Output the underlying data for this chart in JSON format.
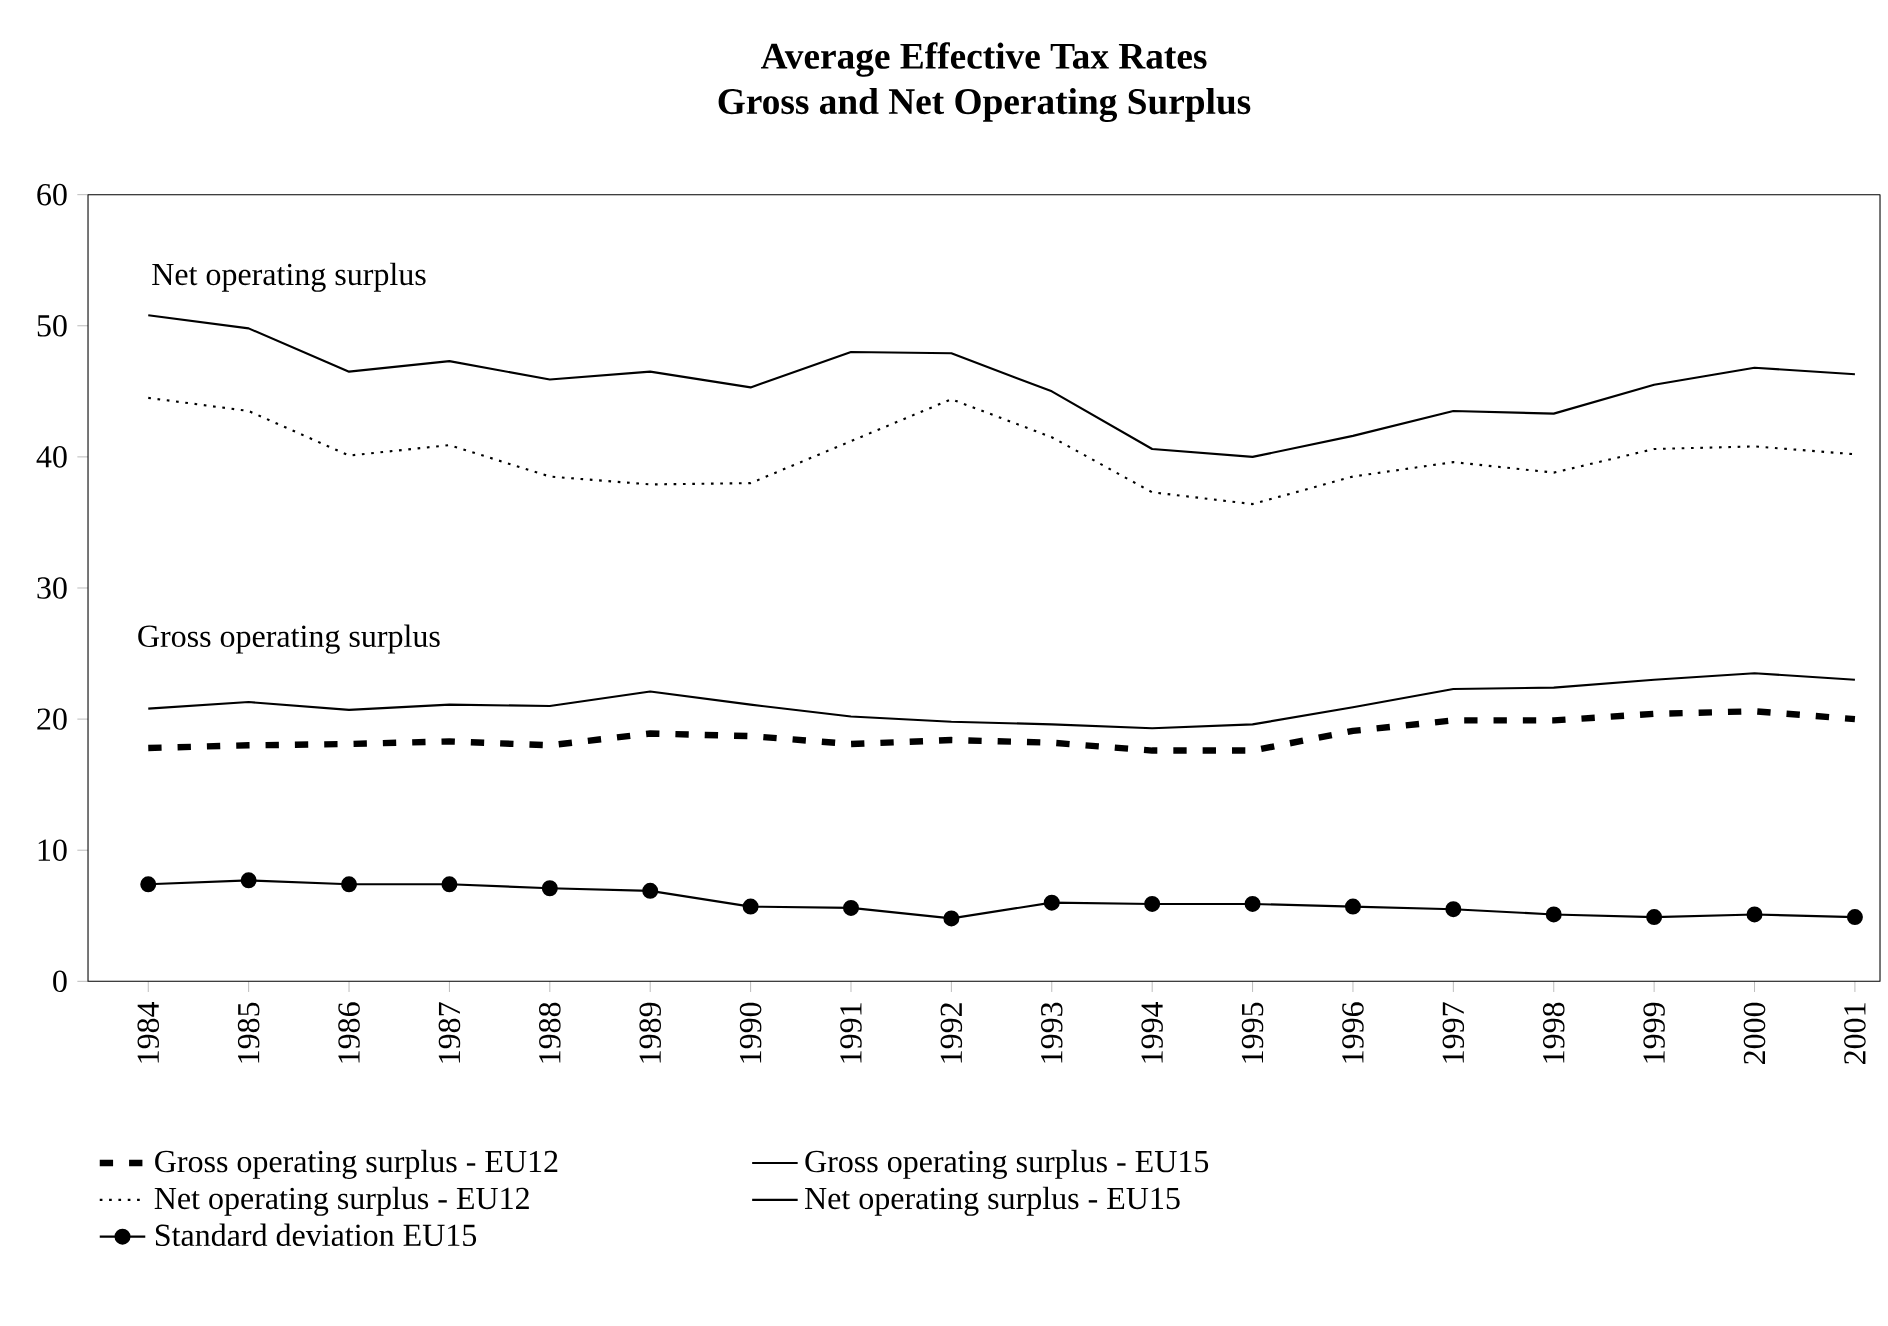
{
  "chart_data": {
    "type": "line",
    "title": "Average Effective Tax Rates",
    "subtitle": "Gross and Net Operating Surplus",
    "categories": [
      "1984",
      "1985",
      "1986",
      "1987",
      "1988",
      "1989",
      "1990",
      "1991",
      "1992",
      "1993",
      "1994",
      "1995",
      "1996",
      "1997",
      "1998",
      "1999",
      "2000",
      "2001"
    ],
    "series": [
      {
        "name": "Gross operating surplus - EU12",
        "color": "#000000",
        "line_style": "dashed",
        "values": [
          17.8,
          18.0,
          18.1,
          18.3,
          18.0,
          18.9,
          18.7,
          18.1,
          18.4,
          18.2,
          17.6,
          17.6,
          19.1,
          19.9,
          19.9,
          20.4,
          20.6,
          20.0
        ]
      },
      {
        "name": "Gross operating surplus - EU15",
        "color": "#000000",
        "line_style": "solid",
        "values": [
          20.8,
          21.3,
          20.7,
          21.1,
          21.0,
          22.1,
          21.1,
          20.2,
          19.8,
          19.6,
          19.3,
          19.6,
          20.9,
          22.3,
          22.4,
          23.0,
          23.5,
          23.0
        ]
      },
      {
        "name": "Net operating surplus - EU12",
        "color": "#000000",
        "line_style": "dotted",
        "values": [
          44.5,
          43.5,
          40.1,
          40.9,
          38.5,
          37.9,
          38.0,
          41.2,
          44.4,
          41.5,
          37.3,
          36.4,
          38.5,
          39.6,
          38.8,
          40.6,
          40.8,
          40.2
        ]
      },
      {
        "name": "Net operating surplus - EU15",
        "color": "#000000",
        "line_style": "solid",
        "values": [
          50.8,
          49.8,
          46.5,
          47.3,
          45.9,
          46.5,
          45.3,
          48.0,
          47.9,
          45.0,
          40.6,
          40.0,
          41.6,
          43.5,
          43.3,
          45.5,
          46.8,
          46.3
        ]
      },
      {
        "name": "Standard deviation EU15",
        "color": "#000000",
        "line_style": "solid",
        "marker": "circle",
        "values": [
          7.4,
          7.7,
          7.4,
          7.4,
          7.1,
          6.9,
          5.7,
          5.6,
          4.8,
          6.0,
          5.9,
          5.9,
          5.7,
          5.5,
          5.1,
          4.9,
          5.1,
          4.9
        ]
      }
    ],
    "annotations": [
      "Net operating surplus",
      "Gross operating surplus"
    ],
    "ylim": [
      0,
      60
    ],
    "yticks": [
      0,
      10,
      20,
      30,
      40,
      50,
      60
    ],
    "grid": false,
    "legend": "bottom"
  }
}
